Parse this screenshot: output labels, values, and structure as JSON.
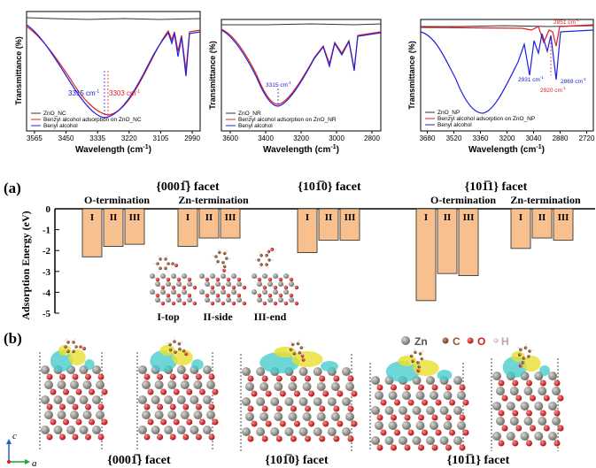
{
  "ftir": [
    {
      "ylabel": "Transmittance (%)",
      "xlabel": "Wavelength (cm",
      "xlabel_sup": "-1",
      "xlabel_tail": ")",
      "ticks": [
        "3565",
        "3450",
        "3335",
        "3220",
        "3105",
        "2990"
      ],
      "legend": [
        "ZnO_NC",
        "Benzyl alcohol adsorption on ZnO_NC",
        "Benyl alcohol"
      ],
      "annotations": [
        {
          "text": "3315 cm",
          "sup": "-1",
          "color": "#1a1acc"
        },
        {
          "text": "3303 cm",
          "sup": "-1",
          "color": "#e02020"
        }
      ]
    },
    {
      "ylabel": "Transmittance (%)",
      "xlabel": "Wavelength (cm",
      "xlabel_sup": "-1",
      "xlabel_tail": ")",
      "ticks": [
        "3600",
        "3400",
        "3200",
        "3000",
        "2800"
      ],
      "legend": [
        "ZnO_NR",
        "Benzyl alcohol adsorption on ZnO_NR",
        "Benyl alcohol"
      ],
      "annotations": [
        {
          "text": "3315 cm",
          "sup": "-1",
          "color": "#1a1acc"
        }
      ]
    },
    {
      "ylabel": "Transmittance (%)",
      "xlabel": "Wavelength (cm",
      "xlabel_sup": "-1",
      "xlabel_tail": ")",
      "ticks": [
        "3680",
        "3520",
        "3360",
        "3200",
        "3040",
        "2880",
        "2720"
      ],
      "legend": [
        "ZnO_NP",
        "Benzyl alcohol adsorption on ZnO_NP",
        "Benyl alcohol"
      ],
      "annotations": [
        {
          "text": "2851 cm",
          "sup": "-1",
          "color": "#e02020"
        },
        {
          "text": "2931 cm",
          "sup": "-1",
          "color": "#1a1acc"
        },
        {
          "text": "2920 cm",
          "sup": "-1",
          "color": "#e02020"
        },
        {
          "text": "2869 cm",
          "sup": "-1",
          "color": "#1a1acc"
        }
      ]
    }
  ],
  "panel_a": {
    "label": "(a)",
    "facets": [
      "{0001̅} facet",
      "{101̅0} facet",
      "{101̅1} facet"
    ],
    "terminations": [
      "O-termination",
      "Zn-termination",
      "O-termination",
      "Zn-termination"
    ],
    "ylabel": "Adsorption Energy (eV)",
    "yticks": [
      "0",
      "-1",
      "-2",
      "-3",
      "-4",
      "-5"
    ],
    "inset_labels": [
      "I-top",
      "II-side",
      "III-end"
    ],
    "groups": [
      {
        "bars": [
          {
            "label": "I",
            "value": -2.3
          },
          {
            "label": "II",
            "value": -1.8
          },
          {
            "label": "III",
            "value": -1.7
          }
        ]
      },
      {
        "bars": [
          {
            "label": "I",
            "value": -1.8
          },
          {
            "label": "II",
            "value": -1.4
          },
          {
            "label": "III",
            "value": -1.4
          }
        ]
      },
      {
        "bars": [
          {
            "label": "I",
            "value": -2.1
          },
          {
            "label": "II",
            "value": -1.5
          },
          {
            "label": "III",
            "value": -1.5
          }
        ]
      },
      {
        "bars": [
          {
            "label": "I",
            "value": -4.4
          },
          {
            "label": "II",
            "value": -3.1
          },
          {
            "label": "III",
            "value": -3.2
          }
        ]
      },
      {
        "bars": [
          {
            "label": "I",
            "value": -1.9
          },
          {
            "label": "II",
            "value": -1.4
          },
          {
            "label": "III",
            "value": -1.5
          }
        ]
      }
    ],
    "colors": {
      "bar": "#f9c08f",
      "bar_edge": "#222222"
    }
  },
  "panel_b": {
    "label": "(b)",
    "legend": [
      {
        "text": "Zn",
        "color": "#8a8a84"
      },
      {
        "text": "C",
        "color": "#8a5a3a"
      },
      {
        "text": "O",
        "color": "#d42020"
      },
      {
        "text": "H",
        "color": "#e8c8c8"
      }
    ],
    "facet_labels": [
      "{0001̅} facet",
      "{101̅0} facet",
      "{101̅1} facet"
    ],
    "axes": {
      "c": "c",
      "a": "a"
    }
  },
  "chart_data": {
    "type": "bar",
    "ylabel": "Adsorption Energy (eV)",
    "ylim": [
      -5,
      0
    ],
    "categories": [
      "I",
      "II",
      "III",
      "I",
      "II",
      "III",
      "I",
      "II",
      "III",
      "I",
      "II",
      "III",
      "I",
      "II",
      "III"
    ],
    "values": [
      -2.3,
      -1.8,
      -1.7,
      -1.8,
      -1.4,
      -1.4,
      -2.1,
      -1.5,
      -1.5,
      -4.4,
      -3.1,
      -3.2,
      -1.9,
      -1.4,
      -1.5
    ]
  }
}
